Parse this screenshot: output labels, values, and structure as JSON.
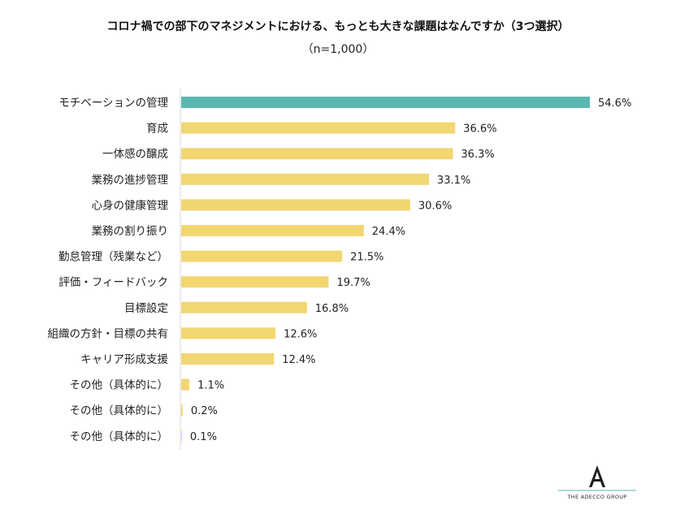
{
  "chart_data": {
    "type": "bar",
    "orientation": "horizontal",
    "title": "コロナ禍での部下のマネジメントにおける、もっとも大きな課題はなんですか（3つ選択）",
    "subtitle": "（n=1,000）",
    "categories": [
      "モチベーションの管理",
      "育成",
      "一体感の醸成",
      "業務の進捗管理",
      "心身の健康管理",
      "業務の割り振り",
      "勤怠管理（残業など）",
      "評価・フィードバック",
      "目標設定",
      "組織の方針・目標の共有",
      "キャリア形成支援",
      "その他（具体的に）",
      "その他（具体的に）",
      "その他（具体的に）"
    ],
    "values": [
      54.6,
      36.6,
      36.3,
      33.1,
      30.6,
      24.4,
      21.5,
      19.7,
      16.8,
      12.6,
      12.4,
      1.1,
      0.2,
      0.1
    ],
    "value_labels": [
      "54.6%",
      "36.6%",
      "36.3%",
      "33.1%",
      "30.6%",
      "24.4%",
      "21.5%",
      "19.7%",
      "16.8%",
      "12.6%",
      "12.4%",
      "1.1%",
      "0.2%",
      "0.1%"
    ],
    "unit": "%",
    "xlim": [
      0,
      54.6
    ],
    "grid": false,
    "legend": "none",
    "colors": {
      "highlight": "#5bb8b0",
      "default": "#f2d672",
      "axis": "#d9d9d9",
      "text": "#222222"
    },
    "highlight_index": 0
  },
  "logo": {
    "text": "THE ADECCO GROUP",
    "icon": "adecco-a-logo-icon"
  }
}
